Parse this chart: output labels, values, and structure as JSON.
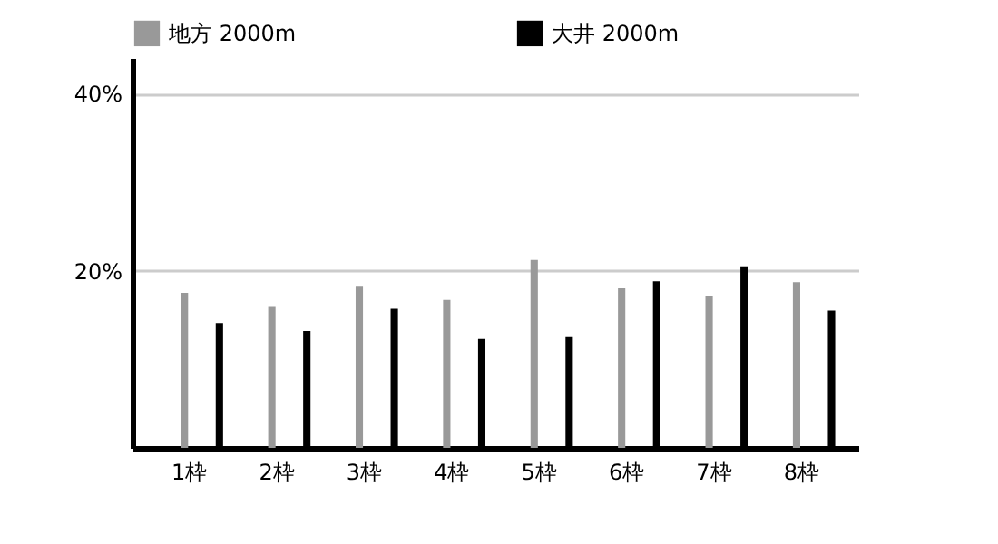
{
  "chart_data": {
    "type": "bar",
    "categories": [
      "1枠",
      "2枠",
      "3枠",
      "4枠",
      "5枠",
      "6枠",
      "7枠",
      "8枠"
    ],
    "series": [
      {
        "name": "地方 2000m",
        "color": "#999999",
        "values": [
          17.5,
          15.9,
          18.3,
          16.7,
          21.2,
          18.0,
          17.1,
          18.7
        ]
      },
      {
        "name": "大井 2000m",
        "color": "#000000",
        "values": [
          14.1,
          13.2,
          15.7,
          12.3,
          12.5,
          18.8,
          20.5,
          15.5
        ]
      }
    ],
    "ylim": [
      0,
      44
    ],
    "yticks": [
      {
        "value": 20,
        "label": "20%"
      },
      {
        "value": 40,
        "label": "40%"
      }
    ],
    "grid": "y",
    "legend": "top"
  }
}
